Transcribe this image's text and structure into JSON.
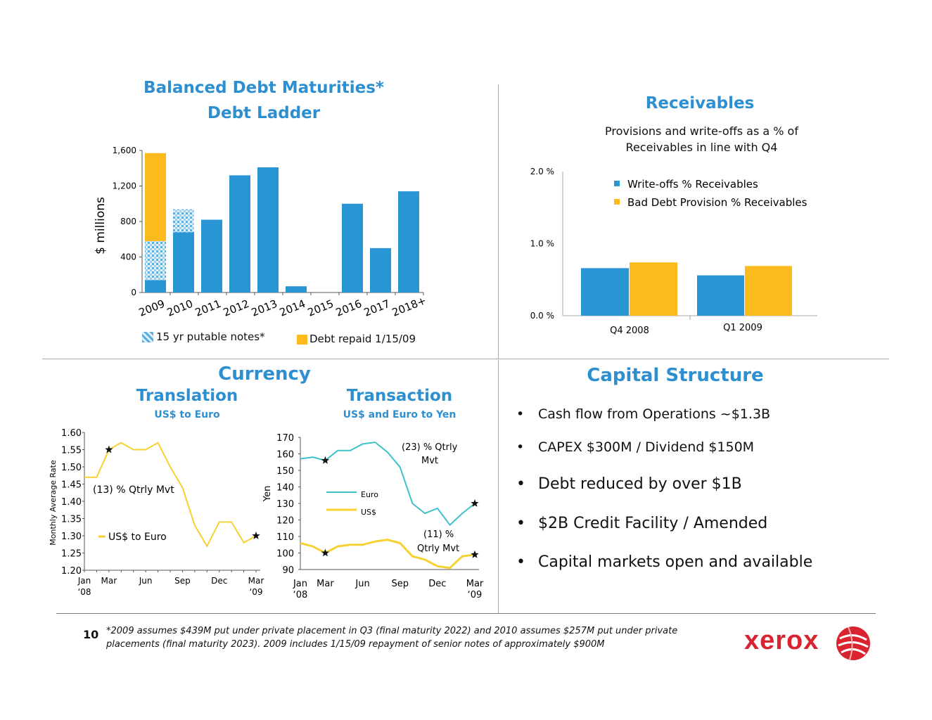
{
  "slide": {
    "page_number": "10",
    "footnote_line1": "*2009 assumes $439M put under private placement in Q3 (final maturity 2022) and 2010 assumes $257M put under private",
    "footnote_line2": "placements (final maturity 2023).  2009 includes 1/15/09 repayment of senior notes of approximately $900M",
    "logo_text": "xerox",
    "logo_color": "#d9232e"
  },
  "colors": {
    "blue": "#2a95d5",
    "gold": "#fdba1c",
    "teal": "#3fc1c9",
    "yellow_line": "#f5d132",
    "title_blue": "#2e8fd0"
  },
  "debt": {
    "title_line1": "Balanced Debt Maturities*",
    "title_line2": "Debt Ladder",
    "legend_putable": "15 yr putable notes*",
    "legend_repaid": "Debt repaid 1/15/09"
  },
  "receivables": {
    "title": "Receivables",
    "subtitle_line1": "Provisions and write-offs as a  % of",
    "subtitle_line2": "Receivables in line with Q4"
  },
  "currency": {
    "title": "Currency",
    "translation_title": "Translation",
    "translation_subtitle": "US$ to Euro",
    "transaction_title": "Transaction",
    "transaction_subtitle": "US$ and Euro to Yen"
  },
  "capital": {
    "title": "Capital Structure",
    "bullets": [
      "Cash flow from Operations ~$1.3B",
      "CAPEX $300M / Dividend $150M",
      "Debt reduced by over $1B",
      "$2B Credit Facility / Amended",
      "Capital markets open and available"
    ]
  },
  "chart_data": [
    {
      "type": "bar",
      "stacked": true,
      "ylabel": "$ millions",
      "ylim": [
        0,
        1600
      ],
      "yticks": [
        "0",
        "400",
        "800",
        "1,200",
        "1,600"
      ],
      "ytick_values": [
        0,
        400,
        800,
        1200,
        1600
      ],
      "categories": [
        "2009",
        "2010",
        "2011",
        "2012",
        "2013",
        "2014",
        "2015",
        "2016",
        "2017",
        "2018+"
      ],
      "series": [
        {
          "name": "",
          "values": [
            140,
            680,
            820,
            1320,
            1410,
            70,
            0,
            1000,
            500,
            1140
          ]
        },
        {
          "name": "15 yr putable notes*",
          "values": [
            439,
            257,
            0,
            0,
            0,
            0,
            0,
            0,
            0,
            0
          ]
        },
        {
          "name": "Debt repaid 1/15/09",
          "values": [
            991,
            0,
            0,
            0,
            0,
            0,
            0,
            0,
            0,
            0
          ]
        }
      ],
      "legend": "bottom"
    },
    {
      "type": "bar",
      "ylim": [
        0,
        2.0
      ],
      "yticks": [
        "0.0 %",
        "1.0 %",
        "2.0 %"
      ],
      "ytick_values": [
        0,
        1.0,
        2.0
      ],
      "categories": [
        "Q4 2008",
        "Q1 2009"
      ],
      "series": [
        {
          "name": "Write-offs  % Receivables",
          "values": [
            0.66,
            0.56
          ]
        },
        {
          "name": "Bad Debt Provision %  Receivables",
          "values": [
            0.74,
            0.69
          ]
        }
      ],
      "legend": "top-right"
    },
    {
      "type": "line",
      "ylabel": "Monthly Average Rate",
      "ylim": [
        1.2,
        1.6
      ],
      "yticks": [
        "1.20",
        "1.25",
        "1.30",
        "1.35",
        "1.40",
        "1.45",
        "1.50",
        "1.55",
        "1.60"
      ],
      "ytick_values": [
        1.2,
        1.25,
        1.3,
        1.35,
        1.4,
        1.45,
        1.5,
        1.55,
        1.6
      ],
      "xticks": [
        "Jan\n‘08",
        "Mar",
        "Jun",
        "Sep",
        "Dec",
        "Mar\n‘09"
      ],
      "xtick_index": [
        0,
        2,
        5,
        8,
        11,
        14
      ],
      "series": [
        {
          "name": "US$ to Euro",
          "values": [
            1.47,
            1.47,
            1.55,
            1.57,
            1.55,
            1.55,
            1.57,
            1.5,
            1.44,
            1.33,
            1.27,
            1.34,
            1.34,
            1.28,
            1.3
          ]
        }
      ],
      "markers": [
        {
          "index": 2
        },
        {
          "index": 14
        }
      ],
      "annotations": [
        "(13) %  Qtrly Mvt"
      ],
      "legend": "bottom-left"
    },
    {
      "type": "line",
      "ylabel": "Yen",
      "ylim": [
        90,
        170
      ],
      "yticks": [
        "90",
        "100",
        "110",
        "120",
        "130",
        "140",
        "150",
        "160",
        "170"
      ],
      "ytick_values": [
        90,
        100,
        110,
        120,
        130,
        140,
        150,
        160,
        170
      ],
      "xticks": [
        "Jan\n‘08",
        "Mar",
        "Jun",
        "Sep",
        "Dec",
        "Mar\n‘09"
      ],
      "xtick_index": [
        0,
        2,
        5,
        8,
        11,
        14
      ],
      "series": [
        {
          "name": "Euro",
          "values": [
            157,
            158,
            156,
            162,
            162,
            166,
            167,
            161,
            152,
            130,
            124,
            127,
            117,
            124,
            130
          ]
        },
        {
          "name": "US$",
          "values": [
            106,
            104,
            100,
            104,
            105,
            105,
            107,
            108,
            106,
            98,
            96,
            92,
            91,
            98,
            99
          ]
        }
      ],
      "markers": [
        {
          "series": 0,
          "index": 2
        },
        {
          "series": 0,
          "index": 14
        },
        {
          "series": 1,
          "index": 2
        },
        {
          "series": 1,
          "index": 14
        }
      ],
      "annotations": [
        "(23) %  Qtrly",
        "Mvt",
        "(11) %",
        "Qtrly Mvt"
      ],
      "legend": "center"
    }
  ]
}
